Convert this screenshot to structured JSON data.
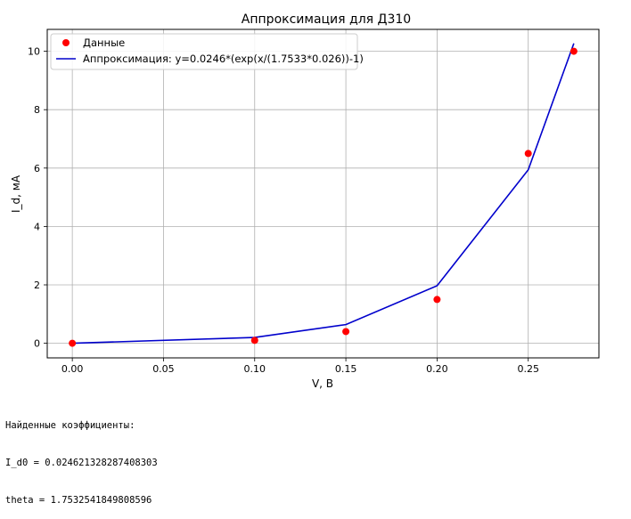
{
  "chart_data": {
    "type": "line",
    "title": "Аппроксимация для Д310",
    "xlabel": "V, B",
    "ylabel": "I_d, мА",
    "xlim": [
      -0.01375,
      0.28875
    ],
    "ylim": [
      -0.5,
      10.75
    ],
    "xticks": [
      "0.00",
      "0.05",
      "0.10",
      "0.15",
      "0.20",
      "0.25"
    ],
    "xtick_values": [
      0.0,
      0.05,
      0.1,
      0.15,
      0.2,
      0.25
    ],
    "yticks": [
      "0",
      "2",
      "4",
      "6",
      "8",
      "10"
    ],
    "ytick_values": [
      0,
      2,
      4,
      6,
      8,
      10
    ],
    "grid": true,
    "legend_position": "top-left",
    "series": [
      {
        "name": "Данные",
        "kind": "scatter",
        "color": "#ff0000",
        "x": [
          0.0,
          0.1,
          0.15,
          0.2,
          0.25,
          0.275
        ],
        "y": [
          0.0,
          0.1,
          0.4,
          1.5,
          6.5,
          10.0
        ]
      },
      {
        "name": "Аппроксимация: y=0.0246*(exp(x/(1.7533*0.026))-1)",
        "kind": "line",
        "color": "#0000cc",
        "x": [
          0.0,
          0.1,
          0.15,
          0.2,
          0.25,
          0.275
        ],
        "y": [
          0.0,
          0.2,
          0.64,
          1.97,
          5.94,
          10.27
        ]
      }
    ]
  },
  "output": {
    "lines": [
      "Найденные коэффициенты:",
      "I_d0 = 0.024621328287408303",
      "theta = 1.7532541849808596"
    ]
  }
}
